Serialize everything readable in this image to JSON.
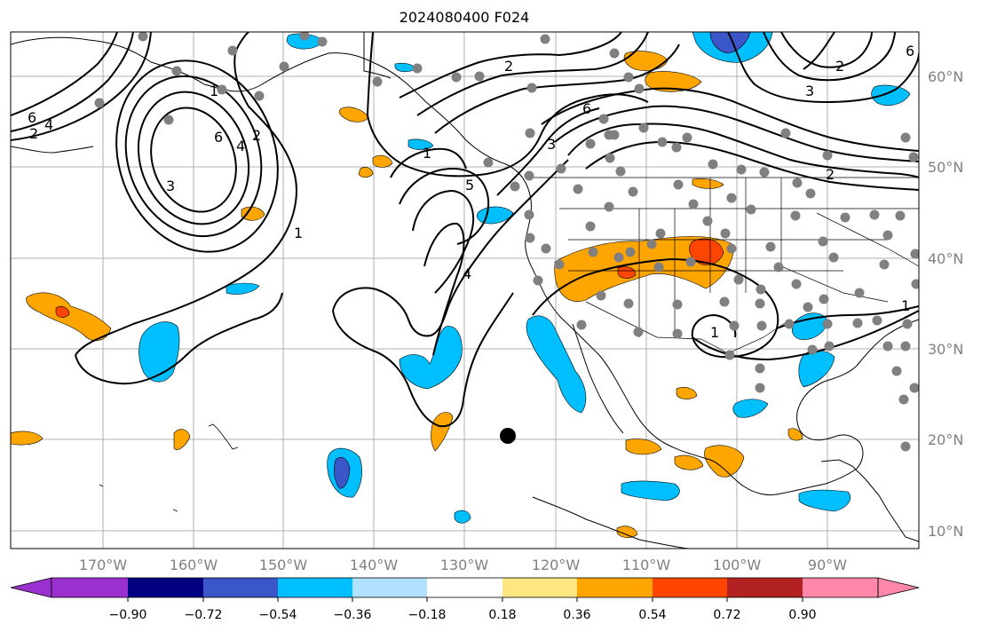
{
  "title": "2024080400 F024",
  "lon_labels": [
    "170°W",
    "160°W",
    "150°W",
    "140°W",
    "130°W",
    "120°W",
    "110°W",
    "100°W",
    "90°W"
  ],
  "lat_labels": [
    "60°N",
    "50°N",
    "40°N",
    "30°N",
    "20°N",
    "10°N"
  ],
  "colorbar": {
    "tick_labels": [
      "−0.90",
      "−0.72",
      "−0.54",
      "−0.36",
      "−0.18",
      "0.18",
      "0.36",
      "0.54",
      "0.72",
      "0.90"
    ],
    "colors": [
      "#9b30d0",
      "#000080",
      "#3a56c8",
      "#00bfff",
      "#b0e2ff",
      "#ffffff",
      "#ffe680",
      "#ffa500",
      "#ff4500",
      "#b22222",
      "#ff88aa"
    ]
  },
  "contour_labels": [
    "6",
    "4",
    "2",
    "6",
    "4",
    "2",
    "3",
    "1",
    "2",
    "6",
    "3",
    "1",
    "5",
    "4",
    "2",
    "6",
    "3",
    "1",
    "2",
    "1",
    "1"
  ],
  "colors": {
    "positive": "#ffa500",
    "strong_positive": "#ff4500",
    "negative": "#00bfff",
    "strong_negative": "#3a56c8",
    "station_dot": "#808080",
    "marker": "#000000"
  }
}
